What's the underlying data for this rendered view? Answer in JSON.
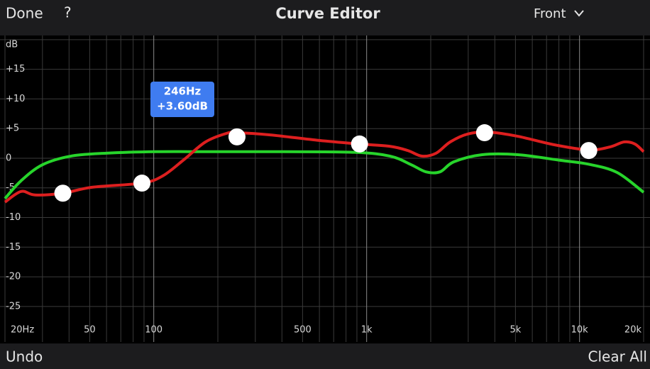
{
  "header": {
    "left": "Done",
    "help": "?",
    "title": "Curve Editor",
    "menu": "Front"
  },
  "footer": {
    "left": "Undo",
    "right": "Clear All"
  },
  "chart_data": {
    "type": "line",
    "log_x": true,
    "xlim": [
      20,
      20000
    ],
    "ylim": [
      -31,
      20.7
    ],
    "xticks": [
      {
        "value": 20,
        "label": "20Hz"
      },
      50,
      100,
      500,
      {
        "value": 1000,
        "label": "1k"
      },
      {
        "value": 5000,
        "label": "5k"
      },
      {
        "value": 10000,
        "label": "10k"
      },
      {
        "value": 20000,
        "label": "20k"
      }
    ],
    "minor_xticks": [
      30,
      40,
      60,
      70,
      80,
      90,
      200,
      300,
      400,
      600,
      700,
      800,
      900,
      2000,
      3000,
      4000,
      6000,
      7000,
      8000,
      9000
    ],
    "yticks": [
      {
        "value": 20,
        "label": "dB"
      },
      {
        "value": 15,
        "label": "+15"
      },
      {
        "value": 10,
        "label": "+10"
      },
      {
        "value": 5,
        "label": "+5"
      },
      0,
      -5,
      -10,
      -15,
      -20,
      -25
    ],
    "series": [
      {
        "color": "#dd1f1f",
        "x": [
          20,
          23.8,
          27.7,
          37.4,
          51.3,
          87.7,
          110,
          139,
          175,
          220,
          244,
          349,
          598,
          926,
          1290,
          1560,
          1820,
          2120,
          2470,
          3000,
          3770,
          5130,
          7530,
          11000,
          13900,
          16200,
          18200,
          20000
        ],
        "values": [
          -7.4,
          -5.6,
          -6.2,
          -5.9,
          -4.9,
          -4.2,
          -3,
          -0.2,
          2.75,
          4.2,
          4.3,
          3.95,
          3,
          2.4,
          2,
          1.3,
          0.35,
          0.85,
          2.75,
          4.1,
          4.4,
          3.7,
          2.3,
          1.4,
          1.9,
          2.75,
          2.4,
          1.1
        ]
      },
      {
        "color": "#27d42b",
        "x": [
          20,
          23.8,
          30,
          40.7,
          59.8,
          102,
          189,
          407,
          877,
          1290,
          1620,
          1900,
          2210,
          2570,
          3490,
          5130,
          8120,
          11000,
          15000,
          20000
        ],
        "values": [
          -6.8,
          -3.8,
          -1.1,
          0.35,
          0.85,
          1.1,
          1.1,
          1.1,
          1,
          0.35,
          -1.1,
          -2.3,
          -2.3,
          -0.6,
          0.6,
          0.6,
          -0.35,
          -1,
          -2.4,
          -5.75
        ]
      }
    ],
    "handles": {
      "color": "#ffffff",
      "x": [
        37.4,
        88,
        246,
        926,
        3580,
        11050
      ],
      "values": [
        -5.9,
        -4.2,
        3.6,
        2.4,
        4.3,
        1.3
      ]
    },
    "tooltip": {
      "color": "#3f7cf0",
      "lines": [
        "246Hz",
        "+3.60dB"
      ]
    }
  }
}
